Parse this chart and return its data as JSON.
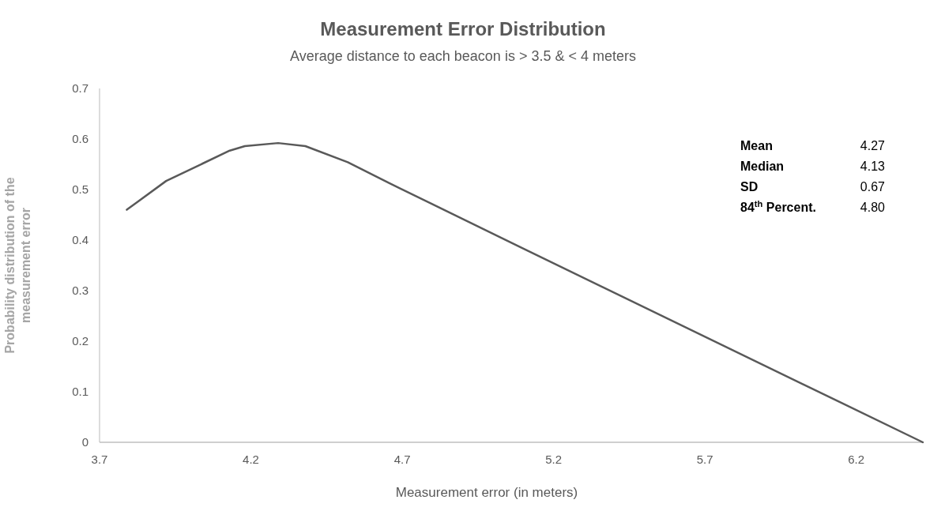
{
  "chart_data": {
    "type": "line",
    "title": "Measurement Error Distribution",
    "subtitle": "Average distance to each beacon is > 3.5 & < 4 meters",
    "xlabel": "Measurement error (in meters)",
    "ylabel": "Probability distribution of the measurement error",
    "x": [
      3.79,
      3.92,
      4.13,
      4.18,
      4.29,
      4.38,
      4.52,
      4.66,
      5.09,
      6.42
    ],
    "series": [
      {
        "color": "#595959",
        "values": [
          0.46,
          0.517,
          0.577,
          0.586,
          0.592,
          0.586,
          0.554,
          0.512,
          0.386,
          0
        ]
      }
    ],
    "xlim": [
      3.7,
      6.42
    ],
    "xticks": [
      3.7,
      4.2,
      4.7,
      5.2,
      5.7,
      6.2
    ],
    "ylim": [
      0,
      0.7
    ],
    "yticks": [
      0,
      0.1,
      0.2,
      0.3,
      0.4,
      0.5,
      0.6,
      0.7
    ],
    "grid": false,
    "marker": "none",
    "line_style": "solid",
    "annotations": [
      "Mean 4.27",
      "Median 4.13",
      "SD 0.67",
      "84$^{th}$ Percent. 4.80"
    ]
  }
}
